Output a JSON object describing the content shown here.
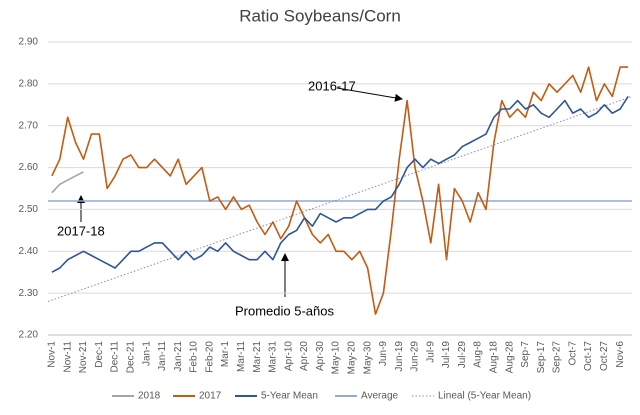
{
  "chart_data": {
    "type": "line",
    "title": "Ratio Soybeans/Corn",
    "categories": [
      "Nov-1",
      null,
      "Nov-11",
      null,
      "Nov-21",
      null,
      "Dec-1",
      null,
      "Dec-11",
      null,
      "Dec-21",
      null,
      "Jan-1",
      null,
      "Jan-11",
      null,
      "Jan-21",
      null,
      "Feb-10",
      null,
      "Feb-20",
      null,
      "Mar-1",
      null,
      "Mar-11",
      null,
      "Mar-21",
      null,
      "Mar-31",
      null,
      "Apr-10",
      null,
      "Apr-20",
      null,
      "Apr-30",
      null,
      "May-10",
      null,
      "May-20",
      null,
      "May-30",
      null,
      "Jun-9",
      null,
      "Jun-19",
      null,
      "Jun-29",
      null,
      "Jul-9",
      null,
      "Jul-19",
      null,
      "Jul-29",
      null,
      "Aug-8",
      null,
      "Aug-18",
      null,
      "Aug-28",
      null,
      "Sep-7",
      null,
      "Sep-17",
      null,
      "Sep-27",
      null,
      "Oct-7",
      null,
      "Oct-17",
      null,
      "Oct-27",
      null,
      "Nov-6",
      null
    ],
    "series": [
      {
        "name": "2018",
        "color": "#a5a5a5",
        "values": [
          2.54,
          2.56,
          2.57,
          2.58,
          2.59,
          null,
          null,
          null,
          null,
          null,
          null,
          null,
          null,
          null,
          null,
          null,
          null,
          null,
          null,
          null,
          null,
          null,
          null,
          null,
          null,
          null,
          null,
          null,
          null,
          null,
          null,
          null,
          null,
          null,
          null,
          null,
          null,
          null,
          null,
          null,
          null,
          null,
          null,
          null,
          null,
          null,
          null,
          null,
          null,
          null,
          null,
          null,
          null,
          null,
          null,
          null,
          null,
          null,
          null,
          null,
          null,
          null,
          null,
          null,
          null,
          null,
          null,
          null,
          null,
          null,
          null,
          null,
          null,
          null
        ]
      },
      {
        "name": "2017",
        "color": "#c55a11",
        "values": [
          2.58,
          2.62,
          2.72,
          2.66,
          2.62,
          2.68,
          2.68,
          2.55,
          2.58,
          2.62,
          2.63,
          2.6,
          2.6,
          2.62,
          2.6,
          2.58,
          2.62,
          2.56,
          2.58,
          2.6,
          2.52,
          2.53,
          2.5,
          2.53,
          2.5,
          2.51,
          2.47,
          2.44,
          2.47,
          2.43,
          2.46,
          2.52,
          2.48,
          2.44,
          2.42,
          2.44,
          2.4,
          2.4,
          2.38,
          2.4,
          2.36,
          2.25,
          2.3,
          2.45,
          2.62,
          2.76,
          2.6,
          2.52,
          2.42,
          2.56,
          2.38,
          2.55,
          2.52,
          2.47,
          2.54,
          2.5,
          2.66,
          2.76,
          2.72,
          2.74,
          2.72,
          2.78,
          2.76,
          2.8,
          2.78,
          2.8,
          2.82,
          2.78,
          2.84,
          2.76,
          2.8,
          2.77,
          2.84,
          2.84
        ]
      },
      {
        "name": "5-Year Mean",
        "color": "#2f5597",
        "values": [
          2.35,
          2.36,
          2.38,
          2.39,
          2.4,
          2.39,
          2.38,
          2.37,
          2.36,
          2.38,
          2.4,
          2.4,
          2.41,
          2.42,
          2.42,
          2.4,
          2.38,
          2.4,
          2.38,
          2.39,
          2.41,
          2.4,
          2.42,
          2.4,
          2.39,
          2.38,
          2.38,
          2.4,
          2.38,
          2.42,
          2.44,
          2.45,
          2.48,
          2.46,
          2.49,
          2.48,
          2.47,
          2.48,
          2.48,
          2.49,
          2.5,
          2.5,
          2.52,
          2.53,
          2.56,
          2.6,
          2.62,
          2.6,
          2.62,
          2.61,
          2.62,
          2.63,
          2.65,
          2.66,
          2.67,
          2.68,
          2.72,
          2.74,
          2.74,
          2.76,
          2.74,
          2.75,
          2.73,
          2.72,
          2.74,
          2.76,
          2.73,
          2.74,
          2.72,
          2.73,
          2.75,
          2.73,
          2.74,
          2.77
        ]
      }
    ],
    "average": {
      "name": "Average",
      "color": "#8faadc",
      "value": 2.52
    },
    "trend": {
      "name": "Lineal (5-Year Mean)",
      "color": "#8c8ca8",
      "values": [
        2.28,
        2.77
      ]
    },
    "ylim": [
      2.2,
      2.9
    ],
    "yticks": [
      {
        "value": 2.2,
        "label": "2.20"
      },
      {
        "value": 2.3,
        "label": "2.30"
      },
      {
        "value": 2.4,
        "label": "2.40"
      },
      {
        "value": 2.5,
        "label": "2.50"
      },
      {
        "value": 2.6,
        "label": "2.60"
      },
      {
        "value": 2.7,
        "label": "2.70"
      },
      {
        "value": 2.8,
        "label": "2.80"
      },
      {
        "value": 2.9,
        "label": "2.90"
      }
    ],
    "grid": true,
    "legend": "bottom",
    "annotations": [
      "2016-17",
      "2017-18",
      "Promedio 5-años"
    ]
  }
}
